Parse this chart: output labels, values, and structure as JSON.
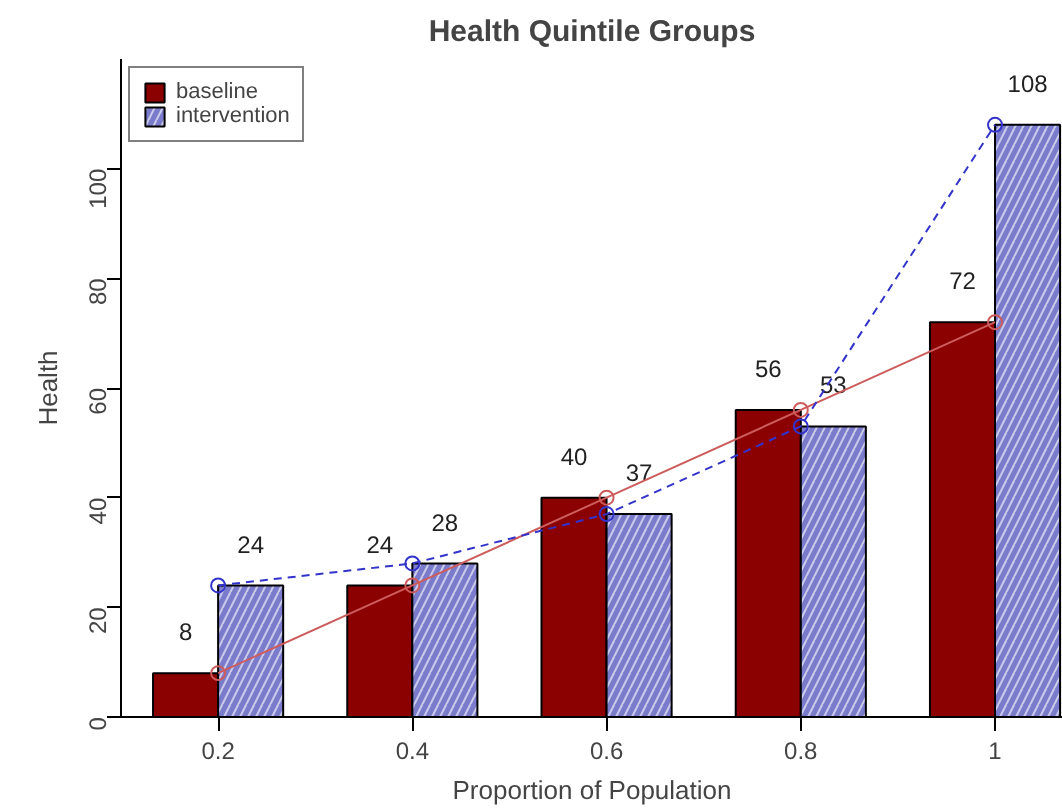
{
  "chart_data": {
    "type": "bar",
    "title": "Health Quintile Groups",
    "xlabel": "Proportion of Population",
    "ylabel": "Health",
    "x": [
      0.2,
      0.4,
      0.6,
      0.8,
      1
    ],
    "xlim": [
      0.1,
      1.07
    ],
    "xticks": [
      0.2,
      0.4,
      0.6,
      0.8,
      1
    ],
    "ylim": [
      0,
      120
    ],
    "yticks": [
      0,
      20,
      40,
      60,
      80,
      100
    ],
    "series": [
      {
        "name": "baseline",
        "color": "#8b0000",
        "values": [
          8,
          24,
          40,
          56,
          72
        ],
        "value_labels": [
          "8",
          "24",
          "40",
          "56",
          "72"
        ]
      },
      {
        "name": "intervention",
        "color": "#7b7bcc",
        "values": [
          24,
          28,
          37,
          53,
          108
        ],
        "value_labels": [
          "24",
          "28",
          "37",
          "53",
          "108"
        ]
      },
      {
        "type": "line",
        "color": "#cd5c5c",
        "line_style": "solid",
        "values": [
          8,
          24,
          40,
          56,
          72
        ]
      },
      {
        "type": "line",
        "color": "#3333cc",
        "line_style": "dashed",
        "values": [
          24,
          28,
          37,
          53,
          108
        ]
      }
    ],
    "marker": "circle",
    "grid": false,
    "legend": "top left"
  }
}
